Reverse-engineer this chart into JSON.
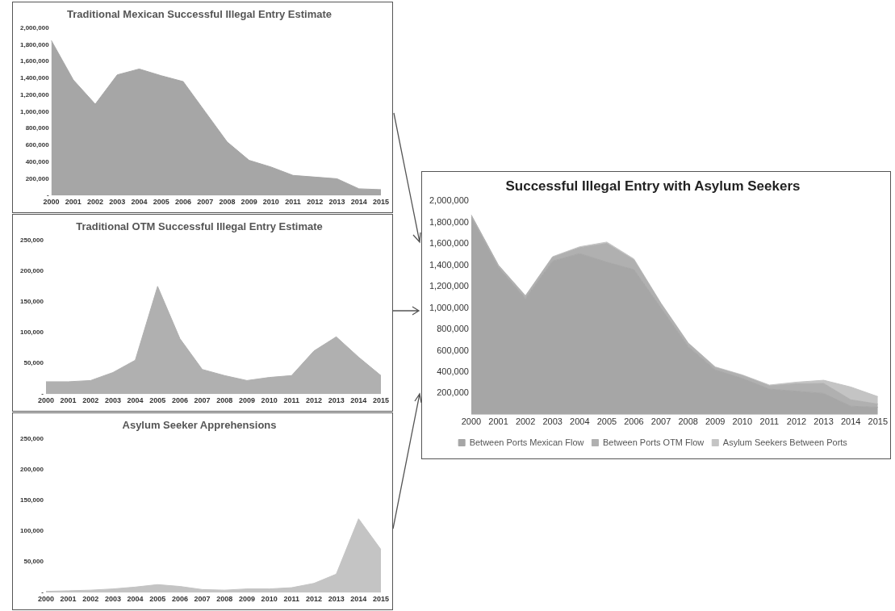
{
  "chart_data": [
    {
      "type": "area",
      "title": "Traditional Mexican Successful Illegal Entry Estimate",
      "categories": [
        "2000",
        "2001",
        "2002",
        "2003",
        "2004",
        "2005",
        "2006",
        "2007",
        "2008",
        "2009",
        "2010",
        "2011",
        "2012",
        "2013",
        "2014",
        "2015"
      ],
      "values": [
        1850000,
        1380000,
        1090000,
        1440000,
        1510000,
        1430000,
        1360000,
        1000000,
        640000,
        420000,
        340000,
        240000,
        220000,
        200000,
        80000,
        70000
      ],
      "color": "#a6a6a6",
      "ylim": [
        0,
        2000000
      ],
      "yticks": [
        {
          "value": 0,
          "label": "-"
        },
        {
          "value": 200000,
          "label": "200,000"
        },
        {
          "value": 400000,
          "label": "400,000"
        },
        {
          "value": 600000,
          "label": "600,000"
        },
        {
          "value": 800000,
          "label": "800,000"
        },
        {
          "value": 1000000,
          "label": "1,000,000"
        },
        {
          "value": 1200000,
          "label": "1,200,000"
        },
        {
          "value": 1400000,
          "label": "1,400,000"
        },
        {
          "value": 1600000,
          "label": "1,600,000"
        },
        {
          "value": 1800000,
          "label": "1,800,000"
        },
        {
          "value": 2000000,
          "label": "2,000,000"
        }
      ],
      "grid": false,
      "legend": false
    },
    {
      "type": "area",
      "title": "Traditional OTM Successful Illegal Entry Estimate",
      "categories": [
        "2000",
        "2001",
        "2002",
        "2003",
        "2004",
        "2005",
        "2006",
        "2007",
        "2008",
        "2009",
        "2010",
        "2011",
        "2012",
        "2013",
        "2014",
        "2015"
      ],
      "values": [
        20000,
        20000,
        22000,
        35000,
        55000,
        175000,
        90000,
        40000,
        30000,
        22000,
        27000,
        30000,
        70000,
        93000,
        60000,
        30000
      ],
      "color": "#b0b0b0",
      "ylim": [
        0,
        250000
      ],
      "yticks": [
        {
          "value": 0,
          "label": "-"
        },
        {
          "value": 50000,
          "label": "50,000"
        },
        {
          "value": 100000,
          "label": "100,000"
        },
        {
          "value": 150000,
          "label": "150,000"
        },
        {
          "value": 200000,
          "label": "200,000"
        },
        {
          "value": 250000,
          "label": "250,000"
        }
      ],
      "grid": false,
      "legend": false
    },
    {
      "type": "area",
      "title": "Asylum Seeker Apprehensions",
      "categories": [
        "2000",
        "2001",
        "2002",
        "2003",
        "2004",
        "2005",
        "2006",
        "2007",
        "2008",
        "2009",
        "2010",
        "2011",
        "2012",
        "2013",
        "2014",
        "2015"
      ],
      "values": [
        2000,
        3000,
        4000,
        6000,
        9000,
        13000,
        10000,
        5000,
        4000,
        6000,
        6000,
        8000,
        15000,
        30000,
        120000,
        70000
      ],
      "color": "#c4c4c4",
      "ylim": [
        0,
        250000
      ],
      "yticks": [
        {
          "value": 0,
          "label": "-"
        },
        {
          "value": 50000,
          "label": "50,000"
        },
        {
          "value": 100000,
          "label": "100,000"
        },
        {
          "value": 150000,
          "label": "150,000"
        },
        {
          "value": 200000,
          "label": "200,000"
        },
        {
          "value": 250000,
          "label": "250,000"
        }
      ],
      "grid": false,
      "legend": false
    },
    {
      "type": "area",
      "title": "Successful Illegal Entry with Asylum Seekers",
      "stacked": true,
      "categories": [
        "2000",
        "2001",
        "2002",
        "2003",
        "2004",
        "2005",
        "2006",
        "2007",
        "2008",
        "2009",
        "2010",
        "2011",
        "2012",
        "2013",
        "2014",
        "2015"
      ],
      "series": [
        {
          "name": "Between Ports Mexican Flow",
          "color": "#a6a6a6",
          "values": [
            1850000,
            1380000,
            1090000,
            1440000,
            1510000,
            1430000,
            1360000,
            1000000,
            640000,
            420000,
            340000,
            240000,
            220000,
            200000,
            80000,
            70000
          ]
        },
        {
          "name": "Between Ports OTM Flow",
          "color": "#b0b0b0",
          "values": [
            20000,
            20000,
            22000,
            35000,
            55000,
            175000,
            90000,
            40000,
            30000,
            22000,
            27000,
            30000,
            70000,
            93000,
            60000,
            30000
          ]
        },
        {
          "name": "Asylum Seekers Between Ports",
          "color": "#c4c4c4",
          "values": [
            2000,
            3000,
            4000,
            6000,
            9000,
            13000,
            10000,
            5000,
            4000,
            6000,
            6000,
            8000,
            15000,
            30000,
            120000,
            70000
          ]
        }
      ],
      "ylim": [
        0,
        2000000
      ],
      "yticks": [
        {
          "value": 200000,
          "label": "200,000"
        },
        {
          "value": 400000,
          "label": "400,000"
        },
        {
          "value": 600000,
          "label": "600,000"
        },
        {
          "value": 800000,
          "label": "800,000"
        },
        {
          "value": 1000000,
          "label": "1,000,000"
        },
        {
          "value": 1200000,
          "label": "1,200,000"
        },
        {
          "value": 1400000,
          "label": "1,400,000"
        },
        {
          "value": 1600000,
          "label": "1,600,000"
        },
        {
          "value": 1800000,
          "label": "1,800,000"
        },
        {
          "value": 2000000,
          "label": "2,000,000"
        }
      ],
      "grid": false,
      "legend": "bottom"
    }
  ]
}
